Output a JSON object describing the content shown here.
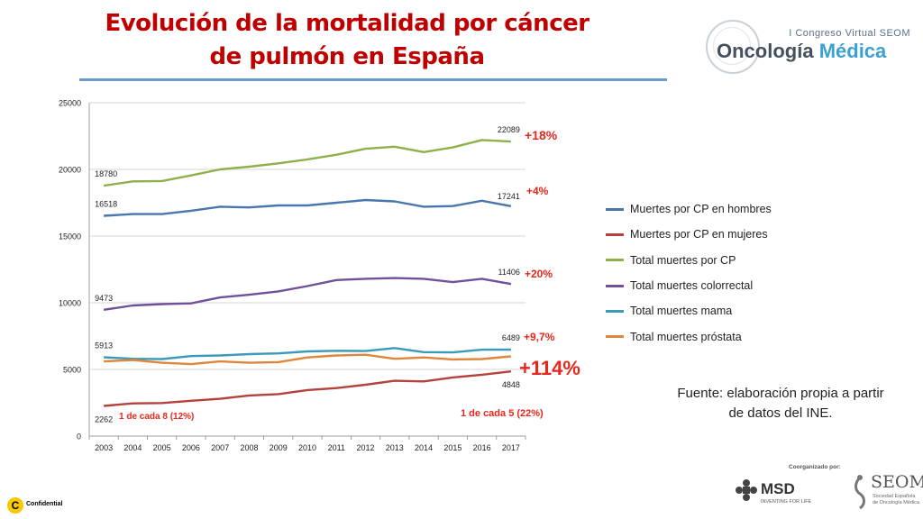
{
  "slide": {
    "title_line1": "Evolución de la mortalidad por cáncer",
    "title_line2": "de pulmón en España",
    "source_line1": "Fuente: elaboración propia a partir",
    "source_line2": "de datos del INE."
  },
  "branding": {
    "congress": "I Congreso Virtual SEOM",
    "oncologia": "Oncología",
    "medica": "Médica",
    "coorganized": "Coorganizado por:",
    "msd_name": "MSD",
    "msd_tagline": "INVENTING FOR LIFE",
    "seom_name": "SEOM",
    "seom_sub": "Sociedad Española de Oncología Médica",
    "confidential_letter": "C",
    "confidential": "Confidential"
  },
  "colors": {
    "hombres": "#4a76ad",
    "mujeres": "#b5413c",
    "total_cp": "#8eb04a",
    "colorrectal": "#71509a",
    "mama": "#3a9bb8",
    "prostata": "#e0853a",
    "annotation_red": "#e8261b"
  },
  "chart_data": {
    "type": "line",
    "title": "",
    "xlabel": "",
    "ylabel": "",
    "ylim": [
      0,
      25000
    ],
    "yticks": [
      0,
      5000,
      10000,
      15000,
      20000,
      25000
    ],
    "x": [
      "2003",
      "2004",
      "2005",
      "2006",
      "2007",
      "2008",
      "2009",
      "2010",
      "2011",
      "2012",
      "2013",
      "2014",
      "2015",
      "2016",
      "2017"
    ],
    "series": [
      {
        "key": "hombres",
        "name": "Muertes por CP en hombres",
        "color": "#4a76ad",
        "values": [
          16518,
          16650,
          16650,
          16900,
          17200,
          17150,
          17300,
          17300,
          17500,
          17700,
          17600,
          17200,
          17250,
          17650,
          17241
        ]
      },
      {
        "key": "mujeres",
        "name": "Muertes por CP en mujeres",
        "color": "#b5413c",
        "values": [
          2262,
          2450,
          2480,
          2650,
          2800,
          3050,
          3150,
          3450,
          3600,
          3850,
          4150,
          4100,
          4400,
          4600,
          4848
        ]
      },
      {
        "key": "total_cp",
        "name": "Total muertes por CP",
        "color": "#8eb04a",
        "values": [
          18780,
          19100,
          19130,
          19550,
          20000,
          20200,
          20450,
          20750,
          21100,
          21550,
          21700,
          21300,
          21650,
          22200,
          22089
        ]
      },
      {
        "key": "colorrectal",
        "name": "Total muertes colorrectal",
        "color": "#71509a",
        "values": [
          9473,
          9800,
          9900,
          9950,
          10400,
          10600,
          10850,
          11250,
          11700,
          11800,
          11850,
          11800,
          11550,
          11800,
          11406
        ]
      },
      {
        "key": "mama",
        "name": "Total muertes mama",
        "color": "#3a9bb8",
        "values": [
          5913,
          5800,
          5780,
          6000,
          6050,
          6150,
          6200,
          6350,
          6400,
          6380,
          6600,
          6300,
          6280,
          6480,
          6489
        ]
      },
      {
        "key": "prostata",
        "name": "Total muertes próstata",
        "color": "#e0853a",
        "values": [
          5600,
          5700,
          5500,
          5400,
          5600,
          5500,
          5550,
          5900,
          6050,
          6100,
          5800,
          5900,
          5750,
          5780,
          5980
        ]
      }
    ],
    "data_labels": [
      {
        "series": "total_cp",
        "index": 0,
        "text": "18780"
      },
      {
        "series": "hombres",
        "index": 0,
        "text": "16518"
      },
      {
        "series": "colorrectal",
        "index": 0,
        "text": "9473"
      },
      {
        "series": "mama",
        "index": 0,
        "text": "5913"
      },
      {
        "series": "mujeres",
        "index": 0,
        "text": "2262"
      },
      {
        "series": "total_cp",
        "index": 14,
        "text": "22089"
      },
      {
        "series": "hombres",
        "index": 14,
        "text": "17241"
      },
      {
        "series": "colorrectal",
        "index": 14,
        "text": "11406"
      },
      {
        "series": "mama",
        "index": 14,
        "text": "6489"
      },
      {
        "series": "mujeres",
        "index": 14,
        "text": "4848"
      }
    ],
    "annotations": [
      {
        "text": "+18%",
        "size": "medium"
      },
      {
        "text": "+4%",
        "size": "small"
      },
      {
        "text": "+20%",
        "size": "small"
      },
      {
        "text": "+9,7%",
        "size": "small"
      },
      {
        "text": "+114%",
        "size": "large"
      },
      {
        "text": "1 de cada 8 (12%)",
        "size": "tiny"
      },
      {
        "text": "1 de cada 5 (22%)",
        "size": "tiny"
      }
    ],
    "legend_position": "right"
  }
}
